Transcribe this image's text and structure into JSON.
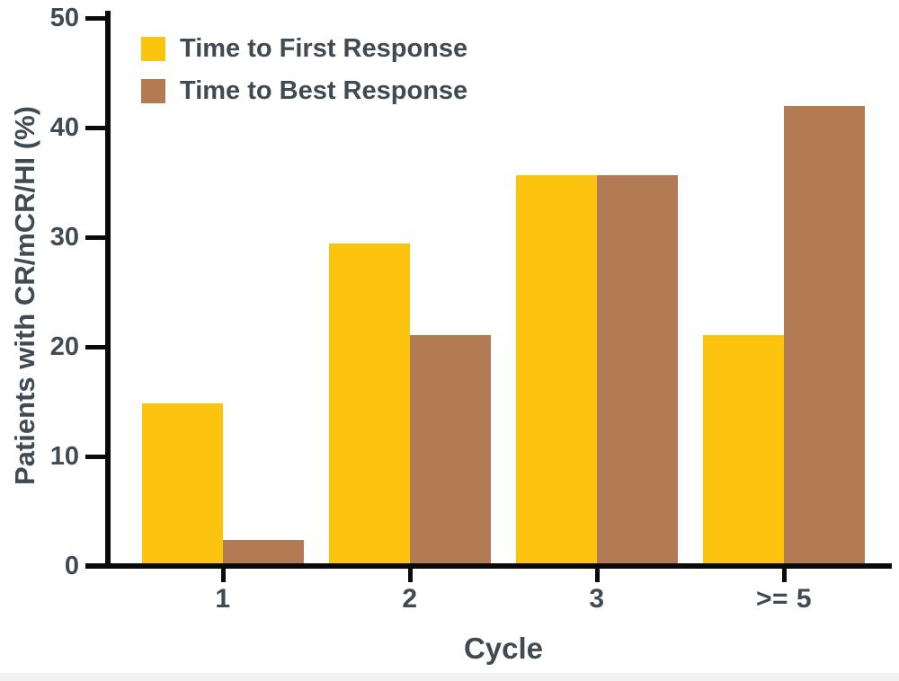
{
  "chart_data": {
    "type": "bar",
    "categories": [
      "1",
      "2",
      "3",
      ">= 5"
    ],
    "series": [
      {
        "name": "Time to First Response",
        "color": "#FCC40E",
        "values": [
          14.6,
          29.2,
          35.4,
          20.8
        ]
      },
      {
        "name": "Time to Best Response",
        "color": "#B37B54",
        "values": [
          2.1,
          20.8,
          35.4,
          41.7
        ]
      }
    ],
    "title": "",
    "xlabel": "Cycle",
    "ylabel": "Patients with CR/mCR/HI (%)",
    "ylim": [
      0,
      50
    ],
    "yticks": [
      0,
      10,
      20,
      30,
      40,
      50
    ],
    "grid": false,
    "legend_position": "top-left",
    "text_color": "#3F4A53",
    "axis_color": "#0A0A0A",
    "background": "#FFFFFF"
  }
}
